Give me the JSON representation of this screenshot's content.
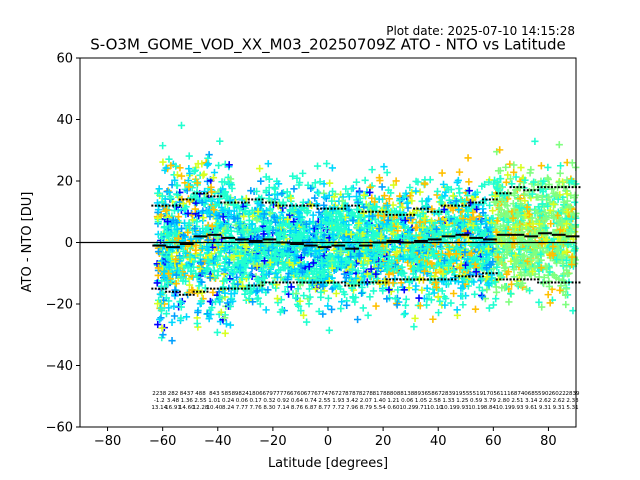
{
  "plot_date": "Plot date: 2025-07-10 14:15:28",
  "colors": {
    "series": [
      "#0000ff",
      "#00a0ff",
      "#00d8ff",
      "#20ffd0",
      "#80ff80",
      "#d8ff20",
      "#ffc000"
    ],
    "median": "#000000",
    "zero_line": "#000000"
  },
  "chart_data": {
    "type": "scatter",
    "title": "S-O3M_GOME_VOD_XX_M03_20250709Z ATO - NTO vs Latitude",
    "xlabel": "Latitude [degrees]",
    "ylabel": "ATO - NTO [DU]",
    "xlim": [
      -90,
      90
    ],
    "ylim": [
      -60,
      60
    ],
    "xticks": [
      -80,
      -60,
      -40,
      -20,
      0,
      20,
      40,
      60,
      80
    ],
    "yticks": [
      -60,
      -40,
      -20,
      0,
      20,
      40,
      60
    ],
    "marker": "+",
    "grid": false,
    "legend": "none",
    "reference_line_y": 0,
    "bin_latitudes": [
      -61.25,
      -56.25,
      -51.25,
      -46.25,
      -41.25,
      -36.25,
      -31.25,
      -26.25,
      -21.25,
      -16.25,
      -11.25,
      -6.25,
      -1.25,
      3.75,
      8.75,
      13.75,
      18.75,
      23.75,
      28.75,
      33.75,
      38.75,
      43.75,
      48.75,
      53.75,
      58.75,
      63.75,
      68.75,
      73.75,
      78.75,
      83.75,
      88.75
    ],
    "bin_median": [
      -1.0,
      -1.5,
      -0.5,
      2.0,
      2.5,
      1.5,
      1.0,
      0.5,
      1.0,
      0.0,
      -0.5,
      -1.0,
      -1.5,
      -1.0,
      -2.0,
      -1.0,
      0.0,
      0.5,
      0.0,
      0.5,
      1.0,
      2.0,
      2.5,
      1.5,
      1.0,
      2.5,
      2.5,
      2.0,
      3.0,
      2.5,
      2.0
    ],
    "bin_upper": [
      12,
      12,
      14,
      16,
      15,
      13,
      13,
      14,
      13,
      12,
      12,
      12,
      11,
      11,
      12,
      10,
      10,
      9,
      9,
      11,
      10,
      12,
      12,
      13,
      14,
      16,
      18,
      17,
      18,
      18,
      18
    ],
    "bin_lower": [
      -15,
      -16,
      -17,
      -16,
      -15,
      -15,
      -15,
      -14,
      -13,
      -13,
      -13,
      -13,
      -13,
      -13,
      -14,
      -13,
      -13,
      -12,
      -12,
      -12,
      -12,
      -12,
      -11,
      -11,
      -10,
      -12,
      -12,
      -12,
      -13,
      -13,
      -13
    ],
    "bin_counts": [
      "2238",
      "282",
      "8437",
      "488",
      "843",
      "5858",
      "9824",
      "1806",
      "6797",
      "7776",
      "6760",
      "6776",
      "7747",
      "6727",
      "8787",
      "8278",
      "8178",
      "8808",
      "8138",
      "8936",
      "5867",
      "2839",
      "1955",
      "5519",
      "1705",
      "6111",
      "6874",
      "0685",
      "5902",
      "6022",
      "2839"
    ],
    "bin_mean": [
      "-1.2",
      "3.48",
      "1.36",
      "2.55",
      "1.01",
      "0.24",
      "0.06",
      "0.17",
      "0.32",
      "0.92",
      "0.64",
      "0.74",
      "2.55",
      "1.93",
      "3.42",
      "2.07",
      "1.40",
      "1.21",
      "0.06",
      "1.05",
      "2.58",
      "1.33",
      "1.25",
      "0.59",
      "3.79",
      "2.80",
      "2.51",
      "3.14",
      "2.62",
      "2.62",
      "2.33"
    ],
    "bin_std": [
      "13.14",
      "16.91",
      "14.60",
      "12.28",
      "10.40",
      "8.24",
      "7.77",
      "7.76",
      "8.30",
      "7.14",
      "8.76",
      "6.87",
      "8.77",
      "7.72",
      "7.96",
      "8.79",
      "5.54",
      "0.60",
      "10.29",
      "9.71",
      "10.10",
      "10.19",
      "9.93",
      "10.19",
      "8.84",
      "10.19",
      "9.93",
      "9.61",
      "9.31",
      "9.31",
      "5.31"
    ]
  }
}
